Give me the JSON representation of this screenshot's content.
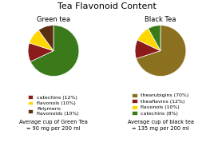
{
  "title": "Tea Flavonoid Content",
  "chart_data": [
    {
      "type": "pie",
      "title": "Green tea",
      "categories": [
        null,
        "catechins (12%)",
        "flavonols (10%)",
        "Polymeric\nflavonoids (10%)"
      ],
      "values": [
        68,
        12,
        10,
        10
      ],
      "colors": [
        "#3a7a1a",
        "#8b1a1a",
        "#ffd700",
        "#5a3010"
      ],
      "legend": "lower center",
      "annotations": [
        "Average cup of Green Tea\n= 90 mg per 200 ml"
      ]
    },
    {
      "type": "pie",
      "title": "Black Tea",
      "categories": [
        "thearubigins (70%)",
        "theaflavins (12%)",
        "flavonols (10%)",
        "catechins (8%)"
      ],
      "values": [
        70,
        12,
        10,
        8
      ],
      "colors": [
        "#8b7020",
        "#8b1a1a",
        "#ffd700",
        "#3a7a1a"
      ],
      "legend": "lower center",
      "annotations": [
        "Average cup of black tea\n= 135 mg per 200 ml"
      ]
    }
  ]
}
